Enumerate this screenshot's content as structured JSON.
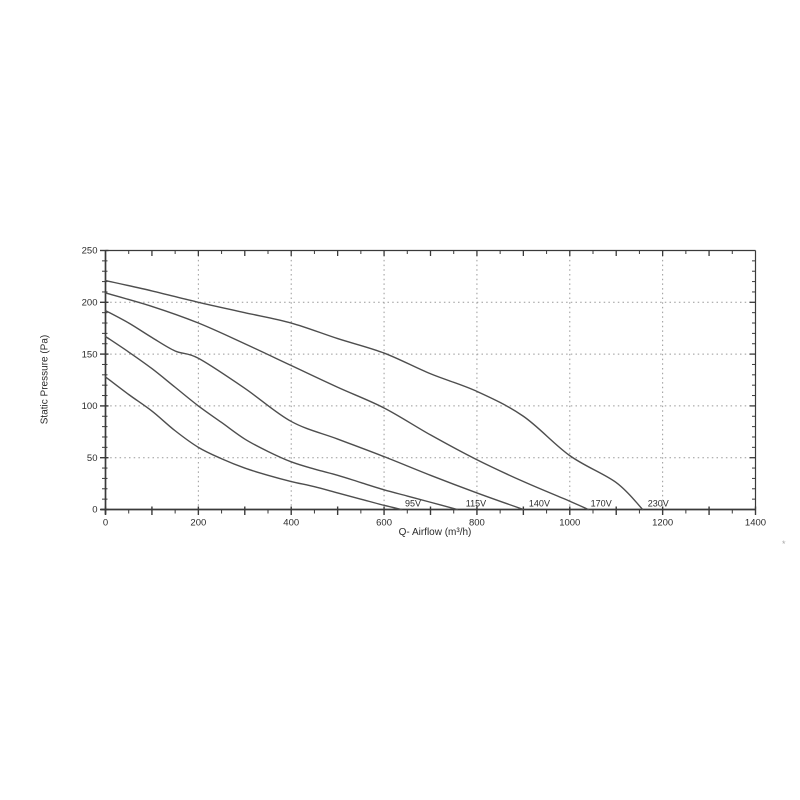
{
  "page": {
    "background": "#ffffff"
  },
  "artifact_mark": "*",
  "chart_data": {
    "type": "line",
    "title": "",
    "xlabel": "Q- Airflow (m³/h)",
    "ylabel": "Static Pressure (Pa)",
    "xlim": [
      0,
      1400
    ],
    "ylim": [
      0,
      250
    ],
    "x_label_ticks": [
      0,
      200,
      400,
      600,
      800,
      1000,
      1200,
      1400
    ],
    "x_minor_step": 50,
    "x_major_step": 100,
    "y_label_ticks": [
      0,
      50,
      100,
      150,
      200,
      250
    ],
    "y_minor_step": 10,
    "y_major_step": 50,
    "grid": {
      "style": "dotted",
      "x_lines": [
        200,
        400,
        600,
        800,
        1000,
        1200
      ],
      "y_lines": [
        50,
        100,
        150,
        200
      ]
    },
    "legend_position": "inline-labels-at-curve-ends",
    "colors": {
      "curve": "#4e4e4e",
      "axis": "#3a3a3a",
      "grid": "#999999",
      "text": "#2b2b2b"
    },
    "series": [
      {
        "name": "95V",
        "label": "95V",
        "label_x": 645,
        "points": [
          [
            0,
            128
          ],
          [
            50,
            111
          ],
          [
            100,
            95
          ],
          [
            150,
            76
          ],
          [
            200,
            60
          ],
          [
            250,
            49
          ],
          [
            300,
            40
          ],
          [
            350,
            33
          ],
          [
            400,
            27
          ],
          [
            450,
            22
          ],
          [
            500,
            16
          ],
          [
            550,
            10
          ],
          [
            600,
            4
          ],
          [
            638,
            0
          ]
        ]
      },
      {
        "name": "115V",
        "label": "115V",
        "label_x": 776,
        "points": [
          [
            0,
            167
          ],
          [
            50,
            152
          ],
          [
            100,
            136
          ],
          [
            150,
            118
          ],
          [
            200,
            100
          ],
          [
            250,
            84
          ],
          [
            300,
            68
          ],
          [
            350,
            56
          ],
          [
            400,
            46
          ],
          [
            450,
            39
          ],
          [
            500,
            33
          ],
          [
            550,
            26
          ],
          [
            600,
            19
          ],
          [
            650,
            13
          ],
          [
            700,
            7
          ],
          [
            758,
            0
          ]
        ]
      },
      {
        "name": "140V",
        "label": "140V",
        "label_x": 912,
        "points": [
          [
            0,
            192
          ],
          [
            50,
            180
          ],
          [
            100,
            166
          ],
          [
            150,
            153
          ],
          [
            200,
            146
          ],
          [
            300,
            117
          ],
          [
            400,
            85
          ],
          [
            500,
            68
          ],
          [
            600,
            51
          ],
          [
            700,
            33
          ],
          [
            800,
            16
          ],
          [
            900,
            0
          ]
        ]
      },
      {
        "name": "170V",
        "label": "170V",
        "label_x": 1045,
        "points": [
          [
            0,
            209
          ],
          [
            100,
            196
          ],
          [
            200,
            180
          ],
          [
            300,
            160
          ],
          [
            400,
            139
          ],
          [
            500,
            118
          ],
          [
            600,
            98
          ],
          [
            700,
            72
          ],
          [
            800,
            48
          ],
          [
            900,
            27
          ],
          [
            1000,
            8
          ],
          [
            1040,
            0
          ]
        ]
      },
      {
        "name": "230V",
        "label": "230V",
        "label_x": 1168,
        "points": [
          [
            0,
            221
          ],
          [
            100,
            211
          ],
          [
            200,
            200
          ],
          [
            300,
            190
          ],
          [
            400,
            180
          ],
          [
            500,
            165
          ],
          [
            600,
            151
          ],
          [
            700,
            131
          ],
          [
            800,
            114
          ],
          [
            900,
            90
          ],
          [
            1000,
            52
          ],
          [
            1100,
            26
          ],
          [
            1157,
            0
          ]
        ]
      }
    ]
  }
}
